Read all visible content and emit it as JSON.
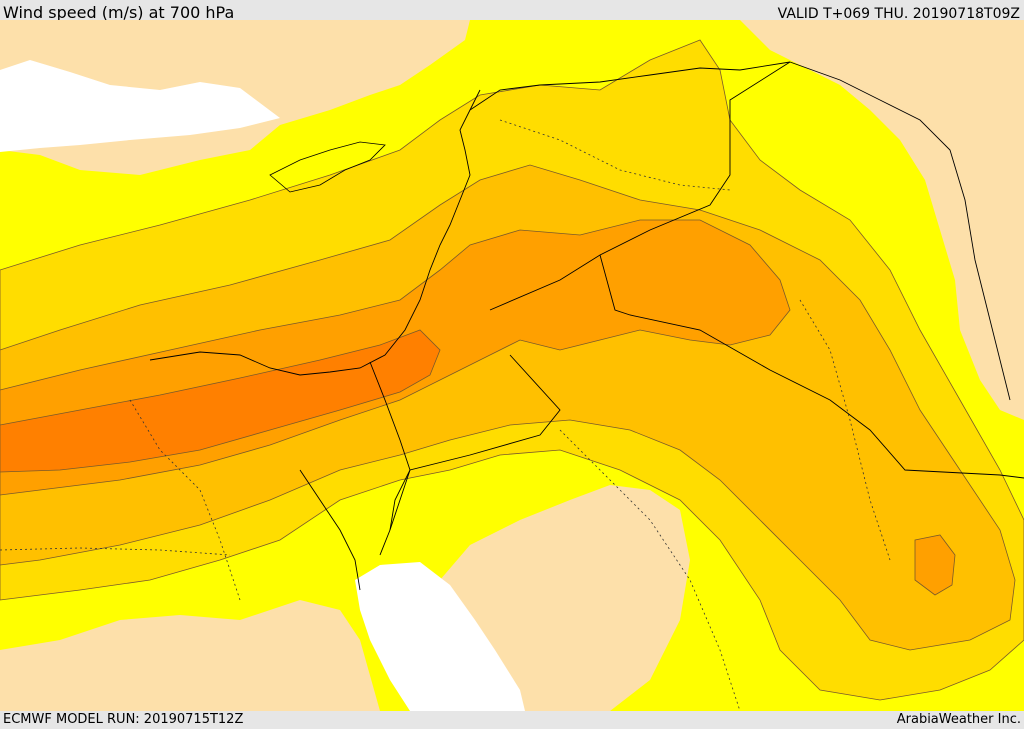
{
  "header": {
    "title": "Wind speed (m/s) at 700 hPa",
    "valid_time": "VALID T+069 THU. 20190718T09Z"
  },
  "footer": {
    "model_run": "ECMWF MODEL RUN: 20190715T12Z",
    "brand": "ArabiaWeather Inc."
  },
  "palette": {
    "land_light": "#fde0aa",
    "sea_white": "#ffffff",
    "band_1": "#ffff00",
    "band_2": "#ffdd00",
    "band_3": "#ffc000",
    "band_4": "#ffa000",
    "band_5": "#ff8000",
    "contour": "#7a5a2a",
    "border": "#000000"
  },
  "map": {
    "region": "eastern-mediterranean-middle-east",
    "layers": [
      "wind-speed-fill",
      "contours",
      "coastlines",
      "country-borders",
      "admin-borders"
    ]
  }
}
